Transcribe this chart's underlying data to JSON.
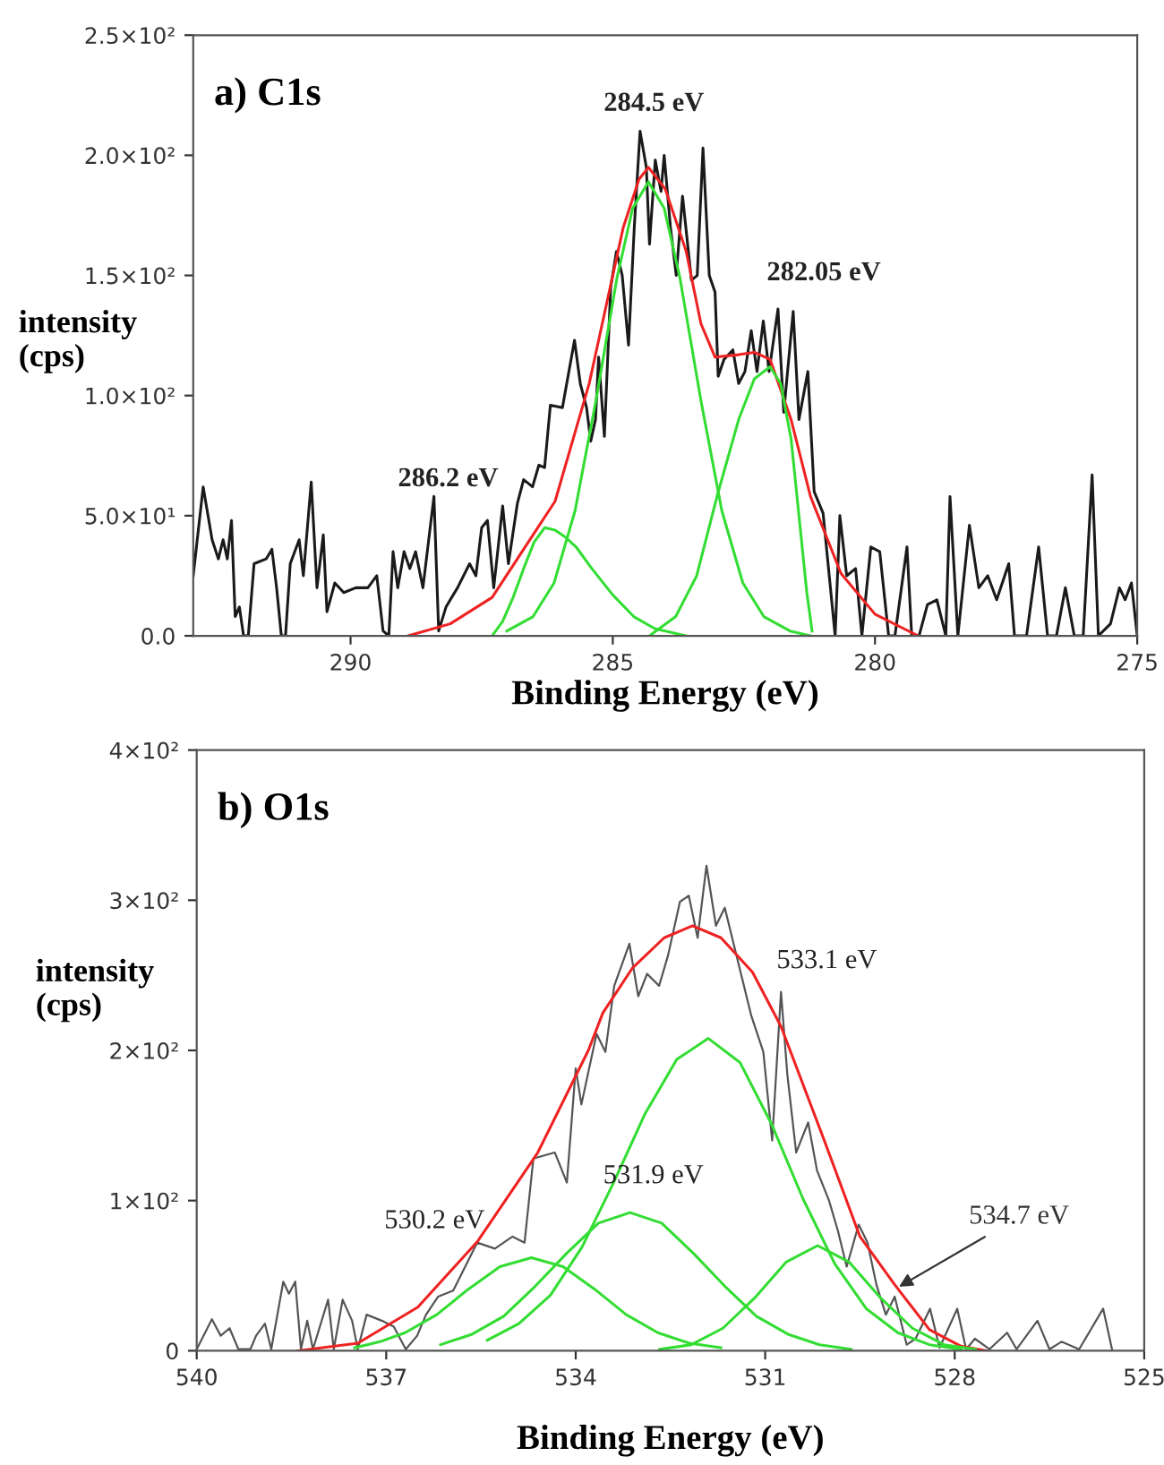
{
  "chart_data": [
    {
      "type": "line",
      "title": "a) C1s",
      "xlabel": "Binding Energy (eV)",
      "ylabel": "intensity\n(cps)",
      "xlim": [
        293,
        275
      ],
      "ylim": [
        0,
        250
      ],
      "xticks": [
        290,
        285,
        280,
        275
      ],
      "yticks": [
        {
          "value": 0,
          "label": "0.0"
        },
        {
          "value": 50,
          "label": "5.0×10¹"
        },
        {
          "value": 100,
          "label": "1.0×10²"
        },
        {
          "value": 150,
          "label": "1.5×10²"
        },
        {
          "value": 200,
          "label": "2.0×10²"
        },
        {
          "value": 250,
          "label": "2.5×10²"
        }
      ],
      "series": [
        {
          "color": "#1a1a1a",
          "x": [
            293.0,
            292.81,
            292.64,
            292.52,
            292.43,
            292.35,
            292.27,
            292.2,
            292.12,
            292.04,
            291.95,
            291.84,
            291.61,
            291.5,
            291.41,
            291.32,
            291.24,
            291.15,
            290.98,
            290.9,
            290.75,
            290.64,
            290.52,
            290.45,
            290.3,
            290.13,
            289.9,
            289.67,
            289.5,
            289.38,
            289.27,
            289.19,
            289.1,
            288.98,
            288.87,
            288.76,
            288.62,
            288.41,
            288.32,
            288.18,
            287.96,
            287.73,
            287.61,
            287.5,
            287.39,
            287.27,
            287.1,
            286.99,
            286.82,
            286.7,
            286.53,
            286.41,
            286.3,
            286.19,
            285.96,
            285.73,
            285.62,
            285.5,
            285.42,
            285.33,
            285.27,
            285.16,
            285.04,
            284.93,
            284.82,
            284.7,
            284.59,
            284.48,
            284.36,
            284.3,
            284.19,
            284.08,
            284.02,
            283.9,
            283.79,
            283.67,
            283.5,
            283.39,
            283.28,
            283.16,
            283.05,
            282.99,
            282.88,
            282.71,
            282.6,
            282.48,
            282.36,
            282.25,
            282.13,
            282.02,
            281.85,
            281.74,
            281.56,
            281.45,
            281.28,
            281.16,
            280.99,
            280.76,
            280.67,
            280.54,
            280.37,
            280.25,
            280.08,
            279.91,
            279.74,
            279.62,
            279.39,
            279.3,
            279.16,
            279.0,
            278.82,
            278.65,
            278.57,
            278.42,
            278.2,
            278.02,
            277.85,
            277.68,
            277.45,
            277.34,
            277.11,
            276.88,
            276.71,
            276.54,
            276.37,
            276.2,
            276.03,
            275.86,
            275.74,
            275.51,
            275.34,
            275.23,
            275.11,
            275.0
          ],
          "values": [
            25,
            62,
            40,
            32,
            40,
            32,
            48,
            8,
            12,
            0,
            0,
            30,
            32,
            36,
            20,
            0,
            0,
            30,
            40,
            25,
            64,
            20,
            42,
            10,
            22,
            18,
            20,
            20,
            25,
            2,
            0,
            35,
            20,
            35,
            28,
            35,
            20,
            58,
            2,
            12,
            20,
            30,
            25,
            45,
            48,
            20,
            54,
            30,
            55,
            65,
            62,
            71,
            70,
            96,
            95,
            123,
            105,
            95,
            81,
            90,
            116,
            83,
            145,
            160,
            150,
            121,
            170,
            210,
            195,
            163,
            198,
            185,
            200,
            170,
            150,
            183,
            148,
            150,
            203,
            150,
            143,
            108,
            115,
            119,
            105,
            110,
            127,
            110,
            131,
            110,
            136,
            93,
            135,
            90,
            110,
            60,
            51,
            0,
            50,
            25,
            28,
            0,
            37,
            35,
            0,
            0,
            37,
            0,
            0,
            13,
            15,
            0,
            58,
            0,
            46,
            20,
            25,
            15,
            30,
            0,
            0,
            37,
            0,
            0,
            20,
            0,
            0,
            67,
            0,
            5,
            20,
            15,
            22,
            0
          ]
        },
        {
          "color": "#ee2222",
          "x": [
            288.9,
            288.1,
            287.3,
            286.7,
            286.1,
            285.45,
            285.2,
            284.8,
            284.5,
            284.32,
            284.0,
            283.6,
            283.32,
            283.05,
            282.6,
            282.3,
            282.0,
            281.6,
            281.23,
            280.65,
            280.0,
            279.18
          ],
          "values": [
            0,
            5,
            16,
            36,
            56,
            105,
            130,
            170,
            190,
            195,
            186,
            160,
            130,
            116,
            117,
            118,
            115,
            90,
            58,
            26,
            9,
            0
          ]
        },
        {
          "color": "#33dd33",
          "x": [
            287.3,
            287.1,
            286.9,
            286.7,
            286.5,
            286.3,
            286.1,
            285.9,
            285.7,
            285.4,
            285.0,
            284.6,
            284.2,
            283.6
          ],
          "values": [
            0,
            6,
            16,
            28,
            39,
            45,
            44,
            41,
            37,
            28,
            17,
            8,
            3,
            0
          ]
        },
        {
          "color": "#33dd33",
          "x": [
            287.02,
            286.52,
            286.12,
            285.72,
            285.32,
            284.92,
            284.62,
            284.32,
            284.02,
            283.72,
            283.32,
            282.92,
            282.52,
            282.12,
            281.62,
            281.22
          ],
          "values": [
            2,
            8,
            22,
            52,
            98,
            149,
            178,
            189,
            178,
            149,
            98,
            52,
            22,
            8,
            2,
            0
          ]
        },
        {
          "color": "#33dd33",
          "x": [
            284.3,
            283.8,
            283.4,
            283.0,
            282.6,
            282.3,
            282.0,
            281.8,
            281.6,
            281.45,
            281.3,
            281.2
          ],
          "values": [
            0,
            8,
            25,
            59,
            90,
            107,
            112,
            105,
            82,
            50,
            18,
            2
          ]
        }
      ],
      "annotations": [
        "286.2 eV",
        "284.5 eV",
        "282.05 eV"
      ]
    },
    {
      "type": "line",
      "title": "b) O1s",
      "xlabel": "Binding Energy (eV)",
      "ylabel": "intensity\n(cps)",
      "xlim": [
        540,
        525
      ],
      "ylim": [
        0,
        400
      ],
      "xticks": [
        540,
        537,
        534,
        531,
        528,
        525
      ],
      "yticks": [
        0,
        {
          "value": 100,
          "label": "1×10²"
        },
        {
          "value": 200,
          "label": "2×10²"
        },
        {
          "value": 300,
          "label": "3×10²"
        },
        {
          "value": 400,
          "label": "4×10²"
        }
      ],
      "series": [
        {
          "color": "#555555",
          "x": [
            540.0,
            539.76,
            539.62,
            539.48,
            539.34,
            539.15,
            539.06,
            538.92,
            538.82,
            538.63,
            538.54,
            538.44,
            538.35,
            538.25,
            538.16,
            537.92,
            537.83,
            537.69,
            537.54,
            537.45,
            537.31,
            537.07,
            536.88,
            536.69,
            536.51,
            536.37,
            536.18,
            535.94,
            535.75,
            535.56,
            535.28,
            535.0,
            534.81,
            534.67,
            534.33,
            534.14,
            534.0,
            533.91,
            533.67,
            533.53,
            533.39,
            533.15,
            533.01,
            532.87,
            532.68,
            532.54,
            532.35,
            532.21,
            532.07,
            531.93,
            531.78,
            531.64,
            531.5,
            531.22,
            531.03,
            530.89,
            530.75,
            530.65,
            530.51,
            530.32,
            530.18,
            529.99,
            529.85,
            529.71,
            529.52,
            529.38,
            529.24,
            529.09,
            528.95,
            528.76,
            528.62,
            528.39,
            528.24,
            527.96,
            527.82,
            527.68,
            527.45,
            527.17,
            527.02,
            526.69,
            526.5,
            526.31,
            526.03,
            525.65,
            525.51
          ],
          "values": [
            1,
            21,
            10,
            15,
            1,
            1,
            10,
            18,
            1,
            46,
            38,
            46,
            1,
            20,
            1,
            34,
            1,
            34,
            20,
            1,
            24,
            20,
            16,
            1,
            10,
            24,
            36,
            40,
            56,
            72,
            68,
            76,
            72,
            128,
            132,
            112,
            188,
            164,
            211,
            199,
            243,
            271,
            236,
            251,
            243,
            263,
            299,
            303,
            275,
            323,
            283,
            295,
            271,
            223,
            199,
            140,
            239,
            184,
            132,
            152,
            120,
            100,
            80,
            56,
            84,
            72,
            44,
            24,
            36,
            4,
            8,
            28,
            2,
            28,
            1,
            8,
            1,
            12,
            1,
            20,
            1,
            6,
            1,
            28,
            1
          ]
        },
        {
          "color": "#ee2222",
          "x": [
            538.4,
            537.45,
            536.5,
            535.55,
            534.6,
            533.8,
            533.57,
            533.1,
            532.6,
            532.15,
            531.7,
            531.2,
            530.75,
            530.1,
            529.5,
            528.95,
            528.4,
            527.9,
            527.5
          ],
          "values": [
            0,
            5,
            29,
            73,
            132,
            200,
            225,
            255,
            275,
            283,
            275,
            252,
            216,
            144,
            76,
            44,
            14,
            3,
            0
          ]
        },
        {
          "color": "#33dd33",
          "x": [
            537.5,
            537.1,
            536.7,
            536.2,
            535.7,
            535.2,
            534.7,
            534.2,
            533.7,
            533.2,
            532.7,
            532.2,
            531.7
          ],
          "values": [
            2,
            6,
            12,
            24,
            41,
            56,
            62,
            56,
            41,
            24,
            12,
            5,
            2
          ]
        },
        {
          "color": "#33dd33",
          "x": [
            536.14,
            535.64,
            535.14,
            534.64,
            534.14,
            533.64,
            533.14,
            532.64,
            532.14,
            531.64,
            531.14,
            530.64,
            530.14,
            529.64
          ],
          "values": [
            4,
            11,
            23,
            43,
            65,
            85,
            92,
            85,
            65,
            43,
            23,
            11,
            4,
            1
          ]
        },
        {
          "color": "#33dd33",
          "x": [
            535.4,
            534.9,
            534.4,
            533.9,
            533.4,
            532.9,
            532.4,
            531.9,
            531.4,
            530.9,
            530.4,
            529.9,
            529.4,
            528.9,
            528.4,
            527.9
          ],
          "values": [
            7,
            18,
            37,
            69,
            112,
            158,
            194,
            208,
            192,
            151,
            101,
            58,
            28,
            12,
            4,
            1
          ]
        },
        {
          "color": "#33dd33",
          "x": [
            532.67,
            532.17,
            531.67,
            531.17,
            530.67,
            530.17,
            529.67,
            529.17,
            528.67,
            528.17,
            527.67
          ],
          "values": [
            1,
            4,
            15,
            35,
            59,
            70,
            59,
            35,
            15,
            4,
            1
          ]
        }
      ],
      "annotations": [
        "530.2 eV",
        "531.9 eV",
        "533.1 eV",
        {
          "text": "534.7 eV",
          "x": 528.95,
          "y": 41
        }
      ]
    }
  ]
}
